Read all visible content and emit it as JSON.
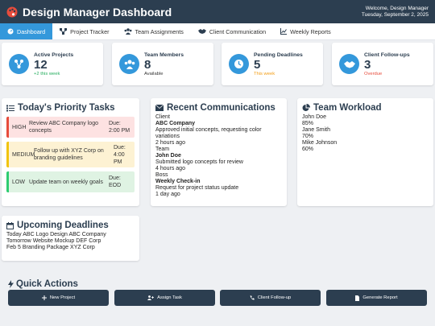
{
  "header": {
    "title": "Design Manager Dashboard",
    "welcome": "Welcome, Design Manager",
    "date": "Tuesday, September 2, 2025",
    "logo_icon": "palette-icon"
  },
  "nav": {
    "tabs": [
      {
        "label": "Dashboard",
        "icon": "dashboard-icon",
        "active": true
      },
      {
        "label": "Project Tracker",
        "icon": "project-tree-icon",
        "active": false
      },
      {
        "label": "Team Assignments",
        "icon": "users-icon",
        "active": false
      },
      {
        "label": "Client Communication",
        "icon": "handshake-icon",
        "active": false
      },
      {
        "label": "Weekly Reports",
        "icon": "chart-line-icon",
        "active": false
      }
    ]
  },
  "stats": [
    {
      "label": "Active Projects",
      "value": "12",
      "sub": "+2 this week",
      "sub_color": "#27ae60",
      "icon": "project-tree-icon"
    },
    {
      "label": "Team Members",
      "value": "8",
      "sub": "Available",
      "sub_color": "#333333",
      "icon": "users-icon"
    },
    {
      "label": "Pending Deadlines",
      "value": "5",
      "sub": "This week",
      "sub_color": "#f39c12",
      "icon": "clock-icon"
    },
    {
      "label": "Client Follow-ups",
      "value": "3",
      "sub": "Overdue",
      "sub_color": "#e74c3c",
      "icon": "handshake-icon"
    }
  ],
  "priority": {
    "title": "Today's Priority Tasks",
    "tasks": [
      {
        "priority": "HIGH",
        "text": "Review ABC Company logo concepts",
        "due": "Due: 2:00 PM"
      },
      {
        "priority": "MEDIUM",
        "text": "Follow up with XYZ Corp on branding guidelines",
        "due": "Due: 4:00 PM"
      },
      {
        "priority": "LOW",
        "text": "Update team on weekly goals",
        "due": "Due: EOD"
      }
    ]
  },
  "communications": {
    "title": "Recent Communications",
    "items": [
      {
        "type": "Client",
        "name": "ABC Company",
        "message": "Approved initial concepts, requesting color variations",
        "time": "2 hours ago"
      },
      {
        "type": "Team",
        "name": "John Doe",
        "message": "Submitted logo concepts for review",
        "time": "4 hours ago"
      },
      {
        "type": "Boss",
        "name": "Weekly Check-in",
        "message": "Request for project status update",
        "time": "1 day ago"
      }
    ]
  },
  "workload": {
    "title": "Team Workload",
    "members": [
      {
        "name": "John Doe",
        "percent": "85%"
      },
      {
        "name": "Jane Smith",
        "percent": "70%"
      },
      {
        "name": "Mike Johnson",
        "percent": "60%"
      }
    ]
  },
  "deadlines": {
    "title": "Upcoming Deadlines",
    "items": [
      {
        "day": "Today",
        "project": "ABC Logo Design",
        "client": "ABC Company"
      },
      {
        "day": "Tomorrow",
        "project": "Website Mockup",
        "client": "DEF Corp"
      },
      {
        "day": "Feb 5",
        "project": "Branding Package",
        "client": "XYZ Corp"
      }
    ]
  },
  "actions": {
    "title": "Quick Actions",
    "buttons": [
      {
        "label": "New Project",
        "icon": "plus-icon"
      },
      {
        "label": "Assign Task",
        "icon": "user-plus-icon"
      },
      {
        "label": "Client Follow-up",
        "icon": "phone-icon"
      },
      {
        "label": "Generate Report",
        "icon": "file-icon"
      }
    ]
  }
}
